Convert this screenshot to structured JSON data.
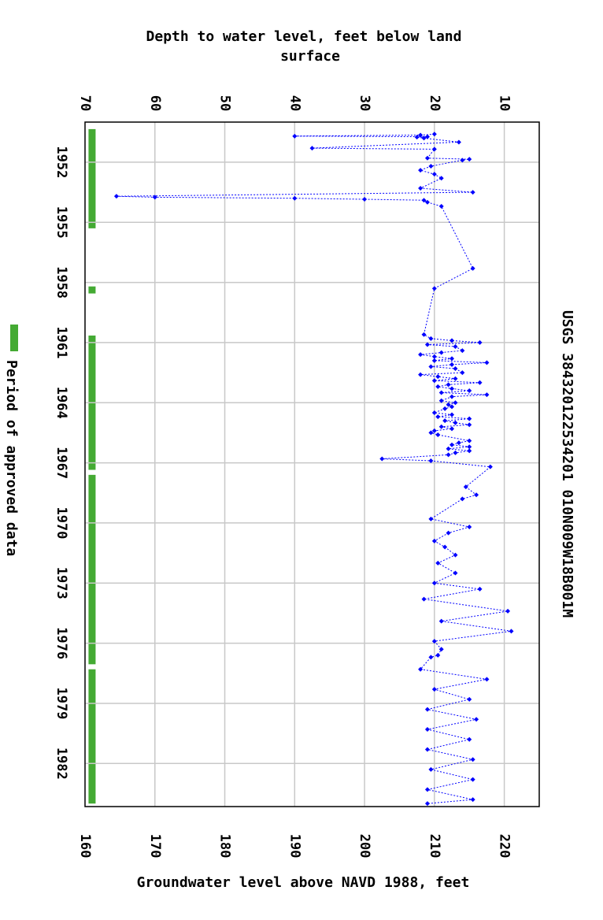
{
  "chart_data": {
    "type": "scatter",
    "title": "USGS 384320122534201 010N009W18B001M",
    "top_axis_title_line1": "Depth to water level, feet below land",
    "top_axis_title_line2": "surface",
    "bottom_axis_title": "Groundwater level above NAVD 1988, feet",
    "legend_label": "Period of approved data",
    "depth_ticks": [
      "70",
      "60",
      "50",
      "40",
      "30",
      "20",
      "10"
    ],
    "depth_tick_values": [
      70,
      60,
      50,
      40,
      30,
      20,
      10
    ],
    "elevation_ticks": [
      "160",
      "170",
      "180",
      "190",
      "200",
      "210",
      "220"
    ],
    "elevation_tick_values": [
      160,
      170,
      180,
      190,
      200,
      210,
      220
    ],
    "year_ticks": [
      "1952",
      "1955",
      "1958",
      "1961",
      "1964",
      "1967",
      "1970",
      "1973",
      "1976",
      "1979",
      "1982"
    ],
    "year_tick_values": [
      1952,
      1955,
      1958,
      1961,
      1964,
      1967,
      1970,
      1973,
      1976,
      1979,
      1982
    ],
    "xlim_elevation": [
      160,
      225
    ],
    "depth_at_160_elevation": 70,
    "ylim_years": [
      1950.0,
      1984.15
    ],
    "approved_periods": [
      [
        1950.35,
        1955.3
      ],
      [
        1958.2,
        1958.55
      ],
      [
        1960.65,
        1967.35
      ],
      [
        1967.6,
        1977.05
      ],
      [
        1977.3,
        1984.0
      ]
    ],
    "series": [
      {
        "name": "Groundwater level",
        "color": "#0000ff",
        "legend_color": "#44aa33",
        "points": [
          [
            1950.6,
            20.0
          ],
          [
            1950.65,
            22.0
          ],
          [
            1950.7,
            40.0
          ],
          [
            1950.73,
            21.0
          ],
          [
            1950.75,
            22.5
          ],
          [
            1950.8,
            21.5
          ],
          [
            1951.0,
            16.5
          ],
          [
            1951.3,
            37.5
          ],
          [
            1951.35,
            20.0
          ],
          [
            1951.8,
            21.0
          ],
          [
            1951.85,
            15.0
          ],
          [
            1951.9,
            16.0
          ],
          [
            1952.2,
            20.5
          ],
          [
            1952.4,
            22.0
          ],
          [
            1952.6,
            20.0
          ],
          [
            1952.8,
            19.0
          ],
          [
            1953.3,
            22.0
          ],
          [
            1953.5,
            14.5
          ],
          [
            1953.7,
            65.5
          ],
          [
            1953.75,
            60.0
          ],
          [
            1953.8,
            40.0
          ],
          [
            1953.85,
            30.0
          ],
          [
            1953.9,
            21.5
          ],
          [
            1954.0,
            21.0
          ],
          [
            1954.2,
            19.0
          ],
          [
            1957.3,
            14.5
          ],
          [
            1958.3,
            20.0
          ],
          [
            1960.6,
            21.5
          ],
          [
            1960.8,
            20.5
          ],
          [
            1960.9,
            17.5
          ],
          [
            1961.0,
            13.5
          ],
          [
            1961.1,
            21.0
          ],
          [
            1961.2,
            17.0
          ],
          [
            1961.4,
            16.0
          ],
          [
            1961.5,
            19.0
          ],
          [
            1961.6,
            22.0
          ],
          [
            1961.7,
            20.0
          ],
          [
            1961.8,
            17.5
          ],
          [
            1961.9,
            20.0
          ],
          [
            1962.0,
            12.5
          ],
          [
            1962.1,
            17.5
          ],
          [
            1962.2,
            20.5
          ],
          [
            1962.3,
            17.0
          ],
          [
            1962.5,
            16.0
          ],
          [
            1962.6,
            22.0
          ],
          [
            1962.7,
            19.5
          ],
          [
            1962.8,
            17.0
          ],
          [
            1962.9,
            20.0
          ],
          [
            1963.0,
            13.5
          ],
          [
            1963.1,
            18.0
          ],
          [
            1963.2,
            19.5
          ],
          [
            1963.3,
            17.5
          ],
          [
            1963.4,
            15.0
          ],
          [
            1963.5,
            19.0
          ],
          [
            1963.6,
            12.5
          ],
          [
            1963.7,
            17.5
          ],
          [
            1963.9,
            19.0
          ],
          [
            1964.0,
            17.0
          ],
          [
            1964.1,
            18.0
          ],
          [
            1964.2,
            17.5
          ],
          [
            1964.3,
            18.5
          ],
          [
            1964.5,
            20.0
          ],
          [
            1964.6,
            17.5
          ],
          [
            1964.7,
            19.5
          ],
          [
            1964.8,
            15.0
          ],
          [
            1964.9,
            18.5
          ],
          [
            1965.0,
            17.0
          ],
          [
            1965.1,
            15.0
          ],
          [
            1965.2,
            19.0
          ],
          [
            1965.3,
            17.5
          ],
          [
            1965.4,
            20.0
          ],
          [
            1965.5,
            20.5
          ],
          [
            1965.6,
            19.5
          ],
          [
            1965.9,
            15.0
          ],
          [
            1966.0,
            16.5
          ],
          [
            1966.1,
            17.5
          ],
          [
            1966.2,
            15.0
          ],
          [
            1966.3,
            18.0
          ],
          [
            1966.4,
            15.0
          ],
          [
            1966.5,
            17.0
          ],
          [
            1966.6,
            18.0
          ],
          [
            1966.8,
            27.5
          ],
          [
            1966.9,
            20.5
          ],
          [
            1967.2,
            12.0
          ],
          [
            1968.2,
            15.5
          ],
          [
            1968.6,
            14.0
          ],
          [
            1968.8,
            16.0
          ],
          [
            1969.8,
            20.5
          ],
          [
            1970.2,
            15.0
          ],
          [
            1970.5,
            18.0
          ],
          [
            1970.9,
            20.0
          ],
          [
            1971.2,
            18.5
          ],
          [
            1971.6,
            17.0
          ],
          [
            1972.0,
            19.5
          ],
          [
            1972.5,
            17.0
          ],
          [
            1973.0,
            20.0
          ],
          [
            1973.3,
            13.5
          ],
          [
            1973.8,
            21.5
          ],
          [
            1974.4,
            9.5
          ],
          [
            1974.9,
            19.0
          ],
          [
            1975.4,
            9.0
          ],
          [
            1975.9,
            20.0
          ],
          [
            1976.3,
            19.0
          ],
          [
            1976.6,
            19.5
          ],
          [
            1976.7,
            20.5
          ],
          [
            1977.3,
            22.0
          ],
          [
            1977.8,
            12.5
          ],
          [
            1978.3,
            20.0
          ],
          [
            1978.8,
            15.0
          ],
          [
            1979.3,
            21.0
          ],
          [
            1979.8,
            14.0
          ],
          [
            1980.3,
            21.0
          ],
          [
            1980.8,
            15.0
          ],
          [
            1981.3,
            21.0
          ],
          [
            1981.8,
            14.5
          ],
          [
            1982.3,
            20.5
          ],
          [
            1982.8,
            14.5
          ],
          [
            1983.3,
            21.0
          ],
          [
            1983.8,
            14.5
          ],
          [
            1984.0,
            21.0
          ]
        ]
      }
    ]
  }
}
